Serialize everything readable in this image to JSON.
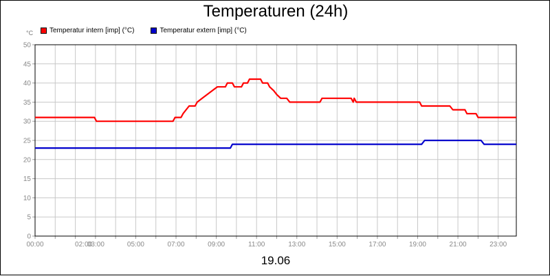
{
  "chart_data": {
    "type": "line",
    "title": "Temperaturen (24h)",
    "y_unit_label": "°C",
    "date_label": "19.06",
    "ylim": [
      0,
      50
    ],
    "yticks": [
      0,
      5,
      10,
      15,
      20,
      25,
      30,
      35,
      40,
      45,
      50
    ],
    "xlim": [
      0,
      23.9
    ],
    "xticks": [
      {
        "label": "00:00",
        "x": 0
      },
      {
        "label": "02:00",
        "x": 2
      },
      {
        "label": "03:00",
        "x": 3
      },
      {
        "label": "05:00",
        "x": 5
      },
      {
        "label": "07:00",
        "x": 7
      },
      {
        "label": "09:00",
        "x": 9
      },
      {
        "label": "11:00",
        "x": 11
      },
      {
        "label": "13:00",
        "x": 13
      },
      {
        "label": "15:00",
        "x": 15
      },
      {
        "label": "17:00",
        "x": 17
      },
      {
        "label": "19:00",
        "x": 19
      },
      {
        "label": "21:00",
        "x": 21
      },
      {
        "label": "23:00",
        "x": 23
      }
    ],
    "grid": true,
    "legend_position": "top-left",
    "series": [
      {
        "name": "Temperatur intern [imp] (°C)",
        "color": "#ff0000",
        "points": [
          [
            0,
            31
          ],
          [
            2.95,
            31
          ],
          [
            3.05,
            30
          ],
          [
            6.85,
            30
          ],
          [
            6.95,
            31
          ],
          [
            7.25,
            31
          ],
          [
            7.35,
            32
          ],
          [
            7.5,
            33
          ],
          [
            7.65,
            34
          ],
          [
            7.95,
            34
          ],
          [
            8.05,
            35
          ],
          [
            8.3,
            36
          ],
          [
            8.55,
            37
          ],
          [
            8.8,
            38
          ],
          [
            9.05,
            39
          ],
          [
            9.45,
            39
          ],
          [
            9.55,
            40
          ],
          [
            9.8,
            40
          ],
          [
            9.9,
            39
          ],
          [
            10.25,
            39
          ],
          [
            10.35,
            40
          ],
          [
            10.55,
            40
          ],
          [
            10.65,
            41
          ],
          [
            11.2,
            41
          ],
          [
            11.3,
            40
          ],
          [
            11.55,
            40
          ],
          [
            11.65,
            39
          ],
          [
            11.85,
            38
          ],
          [
            12.0,
            37
          ],
          [
            12.2,
            36
          ],
          [
            12.5,
            36
          ],
          [
            12.65,
            35
          ],
          [
            14.15,
            35
          ],
          [
            14.25,
            36
          ],
          [
            15.7,
            36
          ],
          [
            15.8,
            35
          ],
          [
            15.85,
            36
          ],
          [
            15.95,
            35
          ],
          [
            19.1,
            35
          ],
          [
            19.2,
            34
          ],
          [
            20.6,
            34
          ],
          [
            20.75,
            33
          ],
          [
            21.35,
            33
          ],
          [
            21.45,
            32
          ],
          [
            21.9,
            32
          ],
          [
            22.0,
            31
          ],
          [
            23.9,
            31
          ]
        ]
      },
      {
        "name": "Temperatur extern [imp] (°C)",
        "color": "#0000cc",
        "points": [
          [
            0,
            23
          ],
          [
            9.7,
            23
          ],
          [
            9.8,
            24
          ],
          [
            19.2,
            24
          ],
          [
            19.35,
            25
          ],
          [
            22.15,
            25
          ],
          [
            22.3,
            24
          ],
          [
            23.9,
            24
          ]
        ]
      }
    ]
  }
}
